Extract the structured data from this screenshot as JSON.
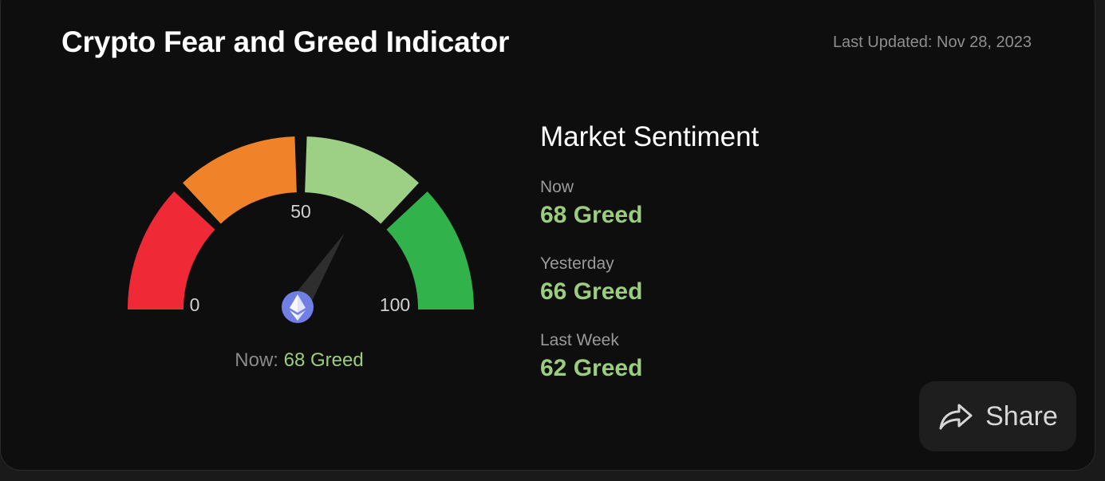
{
  "header": {
    "title": "Crypto Fear and Greed Indicator",
    "last_updated": "Last Updated: Nov 28, 2023"
  },
  "gauge": {
    "value": 68,
    "min": 0,
    "max": 100,
    "ticks": {
      "min_label": "0",
      "mid_label": "50",
      "max_label": "100"
    },
    "center_icon": "ethereum-icon",
    "segments": [
      {
        "from": 0,
        "to": 25,
        "color": "#f02936"
      },
      {
        "from": 25,
        "to": 50,
        "color": "#f0832a"
      },
      {
        "from": 50,
        "to": 75,
        "color": "#9dcf84"
      },
      {
        "from": 75,
        "to": 100,
        "color": "#32b24a"
      }
    ],
    "caption_label": "Now:",
    "caption_value": "68 Greed"
  },
  "sentiment": {
    "title": "Market Sentiment",
    "rows": [
      {
        "label": "Now",
        "value": "68 Greed"
      },
      {
        "label": "Yesterday",
        "value": "66 Greed"
      },
      {
        "label": "Last Week",
        "value": "62 Greed"
      }
    ]
  },
  "share": {
    "label": "Share",
    "icon": "share-arrow-icon"
  },
  "colors": {
    "background": "#0e0e0e",
    "greed_text": "#9ccd7f",
    "ethereum": "#6f7fe3"
  }
}
